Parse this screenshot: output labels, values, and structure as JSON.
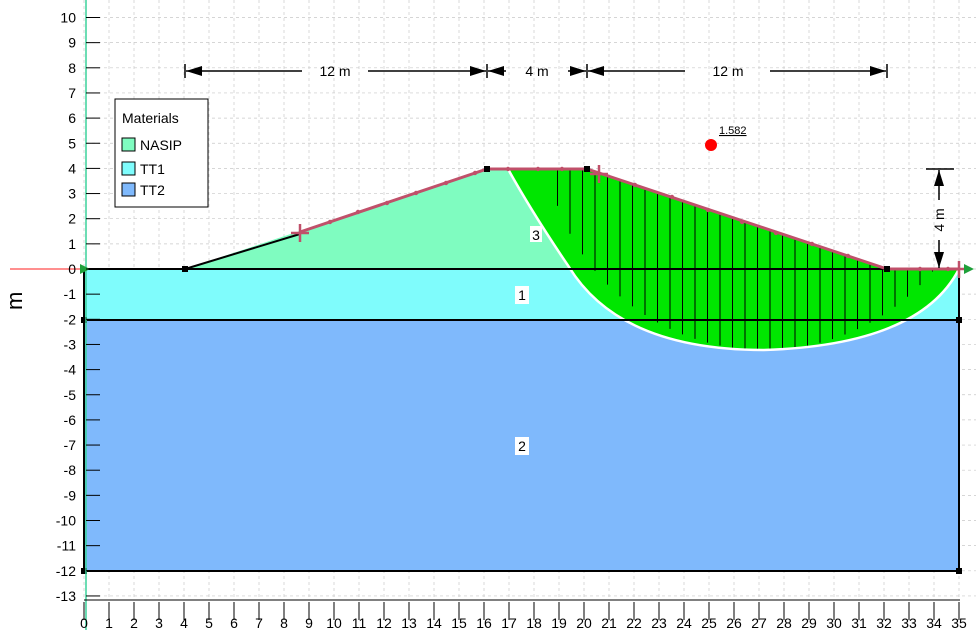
{
  "axes": {
    "y_label": "m",
    "x_ticks": [
      "0",
      "1",
      "2",
      "3",
      "4",
      "5",
      "6",
      "7",
      "8",
      "9",
      "10",
      "11",
      "12",
      "13",
      "14",
      "15",
      "16",
      "17",
      "18",
      "19",
      "20",
      "21",
      "22",
      "23",
      "24",
      "25",
      "26",
      "27",
      "28",
      "29",
      "30",
      "31",
      "32",
      "33",
      "34",
      "35"
    ],
    "y_ticks": [
      "10",
      "9",
      "8",
      "7",
      "6",
      "5",
      "4",
      "3",
      "2",
      "1",
      "0",
      "-1",
      "-2",
      "-3",
      "-4",
      "-5",
      "-6",
      "-7",
      "-8",
      "-9",
      "-10",
      "-11",
      "-12",
      "-13"
    ]
  },
  "legend": {
    "title": "Materials",
    "items": [
      {
        "name": "NASIP",
        "color": "#7ffcc0"
      },
      {
        "name": "TT1",
        "color": "#7ffcfc"
      },
      {
        "name": "TT2",
        "color": "#7fb9fc"
      }
    ]
  },
  "dimensions": {
    "left_width": "12 m",
    "crest_width": "4 m",
    "right_width": "12 m",
    "height": "4 m"
  },
  "regions": {
    "layer_1": "1",
    "layer_2": "2",
    "embankment": "3"
  },
  "slip_surface": {
    "factor_of_safety": "1.582",
    "center_color": "#ff0000",
    "fill_color": "#00e600"
  },
  "colors": {
    "embankment": "#7ffcc0",
    "layer1": "#7ffcfc",
    "layer2": "#7fb9fc",
    "surface_line": "#c0506a",
    "grid": "#c8c8c8",
    "axis_green": "#3cd29b"
  }
}
